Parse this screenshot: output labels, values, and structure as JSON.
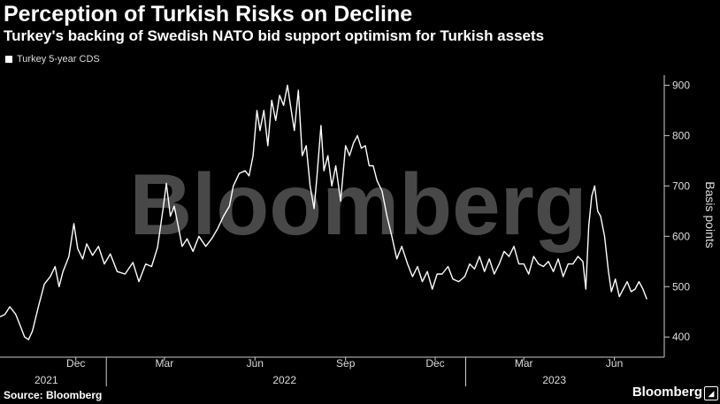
{
  "title": "Perception of Turkish Risks on Decline",
  "subtitle": "Turkey's backing of Swedish NATO bid support optimism for Turkish assets",
  "legend_label": "Turkey 5-year CDS",
  "watermark": "Bloomberg",
  "source": "Source: Bloomberg",
  "brand": "Bloomberg",
  "brand_icon": "bloomberg-terminal-icon",
  "colors": {
    "background": "#000000",
    "line": "#ffffff",
    "axis": "#cccccc",
    "watermark": "#555555"
  },
  "chart_data": {
    "type": "line",
    "title": "Perception of Turkish Risks on Decline",
    "ylabel": "Basis points",
    "ylim": [
      360,
      920
    ],
    "yticks": [
      400,
      500,
      600,
      700,
      800,
      900
    ],
    "y_axis_side": "right",
    "grid": false,
    "legend_position": "top-left",
    "xlim": [
      "2021-09-15",
      "2023-07-10"
    ],
    "month_ticks": [
      {
        "date": "2021-12-01",
        "label": "Dec"
      },
      {
        "date": "2022-03-01",
        "label": "Mar"
      },
      {
        "date": "2022-06-01",
        "label": "Jun"
      },
      {
        "date": "2022-09-01",
        "label": "Sep"
      },
      {
        "date": "2022-12-01",
        "label": "Dec"
      },
      {
        "date": "2023-03-01",
        "label": "Mar"
      },
      {
        "date": "2023-06-01",
        "label": "Jun"
      }
    ],
    "year_labels": [
      {
        "date": "2021-11-01",
        "label": "2021"
      },
      {
        "date": "2022-07-01",
        "label": "2022"
      },
      {
        "date": "2023-04-01",
        "label": "2023"
      }
    ],
    "series": [
      {
        "name": "Turkey 5-year CDS",
        "points": [
          [
            "2021-09-15",
            440
          ],
          [
            "2021-09-20",
            445
          ],
          [
            "2021-09-25",
            460
          ],
          [
            "2021-10-01",
            445
          ],
          [
            "2021-10-06",
            420
          ],
          [
            "2021-10-10",
            400
          ],
          [
            "2021-10-14",
            395
          ],
          [
            "2021-10-18",
            412
          ],
          [
            "2021-10-24",
            460
          ],
          [
            "2021-10-30",
            505
          ],
          [
            "2021-11-05",
            520
          ],
          [
            "2021-11-10",
            540
          ],
          [
            "2021-11-14",
            500
          ],
          [
            "2021-11-18",
            530
          ],
          [
            "2021-11-24",
            560
          ],
          [
            "2021-11-29",
            625
          ],
          [
            "2021-12-03",
            575
          ],
          [
            "2021-12-08",
            555
          ],
          [
            "2021-12-12",
            585
          ],
          [
            "2021-12-18",
            562
          ],
          [
            "2021-12-24",
            580
          ],
          [
            "2021-12-30",
            545
          ],
          [
            "2022-01-05",
            565
          ],
          [
            "2022-01-12",
            530
          ],
          [
            "2022-01-20",
            525
          ],
          [
            "2022-01-28",
            548
          ],
          [
            "2022-02-03",
            510
          ],
          [
            "2022-02-10",
            545
          ],
          [
            "2022-02-16",
            540
          ],
          [
            "2022-02-22",
            578
          ],
          [
            "2022-02-28",
            660
          ],
          [
            "2022-03-03",
            705
          ],
          [
            "2022-03-07",
            640
          ],
          [
            "2022-03-11",
            660
          ],
          [
            "2022-03-15",
            620
          ],
          [
            "2022-03-19",
            580
          ],
          [
            "2022-03-24",
            595
          ],
          [
            "2022-03-30",
            570
          ],
          [
            "2022-04-05",
            600
          ],
          [
            "2022-04-12",
            580
          ],
          [
            "2022-04-18",
            595
          ],
          [
            "2022-04-24",
            615
          ],
          [
            "2022-04-30",
            640
          ],
          [
            "2022-05-06",
            660
          ],
          [
            "2022-05-10",
            700
          ],
          [
            "2022-05-16",
            725
          ],
          [
            "2022-05-22",
            730
          ],
          [
            "2022-05-26",
            720
          ],
          [
            "2022-05-30",
            760
          ],
          [
            "2022-06-03",
            850
          ],
          [
            "2022-06-06",
            810
          ],
          [
            "2022-06-10",
            850
          ],
          [
            "2022-06-14",
            780
          ],
          [
            "2022-06-18",
            870
          ],
          [
            "2022-06-22",
            830
          ],
          [
            "2022-06-26",
            880
          ],
          [
            "2022-06-30",
            860
          ],
          [
            "2022-07-04",
            900
          ],
          [
            "2022-07-07",
            860
          ],
          [
            "2022-07-11",
            810
          ],
          [
            "2022-07-15",
            890
          ],
          [
            "2022-07-19",
            760
          ],
          [
            "2022-07-23",
            780
          ],
          [
            "2022-07-27",
            700
          ],
          [
            "2022-07-31",
            655
          ],
          [
            "2022-08-03",
            720
          ],
          [
            "2022-08-07",
            820
          ],
          [
            "2022-08-10",
            730
          ],
          [
            "2022-08-14",
            760
          ],
          [
            "2022-08-18",
            700
          ],
          [
            "2022-08-22",
            740
          ],
          [
            "2022-08-27",
            670
          ],
          [
            "2022-09-01",
            780
          ],
          [
            "2022-09-05",
            760
          ],
          [
            "2022-09-09",
            785
          ],
          [
            "2022-09-13",
            800
          ],
          [
            "2022-09-17",
            775
          ],
          [
            "2022-09-21",
            780
          ],
          [
            "2022-09-25",
            740
          ],
          [
            "2022-09-29",
            740
          ],
          [
            "2022-10-03",
            710
          ],
          [
            "2022-10-08",
            690
          ],
          [
            "2022-10-13",
            640
          ],
          [
            "2022-10-18",
            600
          ],
          [
            "2022-10-23",
            555
          ],
          [
            "2022-10-28",
            580
          ],
          [
            "2022-11-03",
            545
          ],
          [
            "2022-11-08",
            520
          ],
          [
            "2022-11-13",
            540
          ],
          [
            "2022-11-18",
            510
          ],
          [
            "2022-11-23",
            530
          ],
          [
            "2022-11-28",
            495
          ],
          [
            "2022-12-03",
            525
          ],
          [
            "2022-12-08",
            525
          ],
          [
            "2022-12-14",
            540
          ],
          [
            "2022-12-19",
            515
          ],
          [
            "2022-12-25",
            510
          ],
          [
            "2022-12-31",
            520
          ],
          [
            "2023-01-05",
            545
          ],
          [
            "2023-01-10",
            535
          ],
          [
            "2023-01-15",
            560
          ],
          [
            "2023-01-20",
            530
          ],
          [
            "2023-01-25",
            555
          ],
          [
            "2023-01-30",
            525
          ],
          [
            "2023-02-04",
            545
          ],
          [
            "2023-02-09",
            570
          ],
          [
            "2023-02-14",
            560
          ],
          [
            "2023-02-19",
            580
          ],
          [
            "2023-02-24",
            545
          ],
          [
            "2023-03-01",
            545
          ],
          [
            "2023-03-06",
            525
          ],
          [
            "2023-03-11",
            560
          ],
          [
            "2023-03-16",
            545
          ],
          [
            "2023-03-21",
            540
          ],
          [
            "2023-03-26",
            550
          ],
          [
            "2023-03-31",
            530
          ],
          [
            "2023-04-05",
            555
          ],
          [
            "2023-04-10",
            520
          ],
          [
            "2023-04-15",
            545
          ],
          [
            "2023-04-20",
            545
          ],
          [
            "2023-04-25",
            560
          ],
          [
            "2023-04-30",
            550
          ],
          [
            "2023-05-03",
            495
          ],
          [
            "2023-05-06",
            620
          ],
          [
            "2023-05-09",
            680
          ],
          [
            "2023-05-12",
            700
          ],
          [
            "2023-05-15",
            650
          ],
          [
            "2023-05-18",
            640
          ],
          [
            "2023-05-22",
            600
          ],
          [
            "2023-05-26",
            530
          ],
          [
            "2023-05-29",
            490
          ],
          [
            "2023-06-02",
            515
          ],
          [
            "2023-06-06",
            480
          ],
          [
            "2023-06-10",
            495
          ],
          [
            "2023-06-14",
            510
          ],
          [
            "2023-06-18",
            490
          ],
          [
            "2023-06-22",
            495
          ],
          [
            "2023-06-26",
            510
          ],
          [
            "2023-06-30",
            495
          ],
          [
            "2023-07-04",
            475
          ]
        ]
      }
    ]
  }
}
